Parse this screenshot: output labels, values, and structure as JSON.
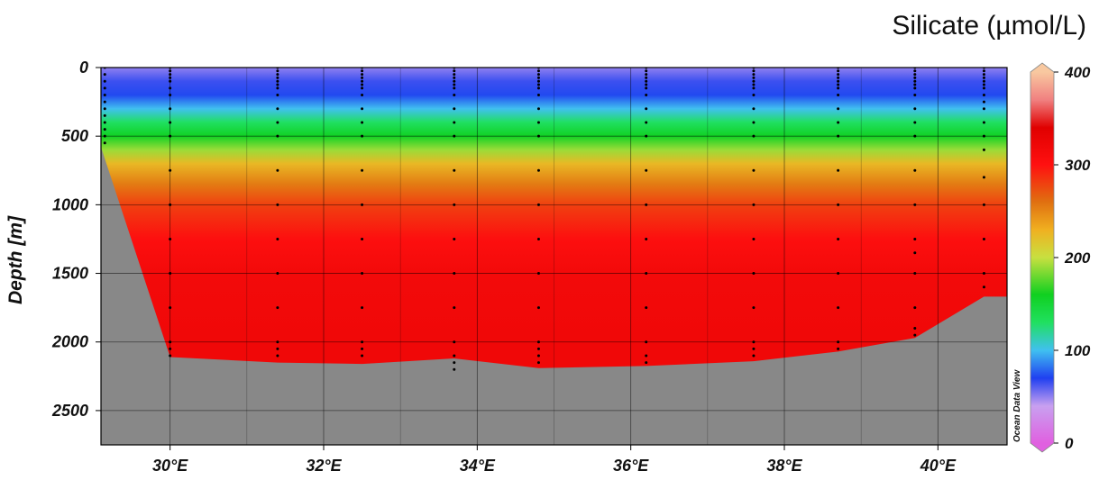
{
  "chart_data": {
    "type": "heatmap",
    "title": "Silicate (µmol/L)",
    "xlabel": "",
    "ylabel": "Depth [m]",
    "xlim": [
      29.1,
      40.9
    ],
    "ylim": [
      2750,
      0
    ],
    "x_ticks": [
      30,
      32,
      34,
      36,
      38,
      40
    ],
    "x_tick_labels": [
      "30°E",
      "32°E",
      "34°E",
      "36°E",
      "38°E",
      "40°E"
    ],
    "y_ticks": [
      0,
      500,
      1000,
      1500,
      2000,
      2500
    ],
    "y_tick_labels": [
      "0",
      "500",
      "1000",
      "1500",
      "2000",
      "2500"
    ],
    "grid": true,
    "colorbar": {
      "min": 0,
      "max": 400,
      "ticks": [
        0,
        100,
        200,
        300,
        400
      ],
      "tick_labels": [
        "0",
        "100",
        "200",
        "300",
        "400"
      ],
      "stops": [
        {
          "value": 0,
          "color": "#e060e0"
        },
        {
          "value": 40,
          "color": "#c8a0f0"
        },
        {
          "value": 70,
          "color": "#2040f0"
        },
        {
          "value": 100,
          "color": "#40c0f0"
        },
        {
          "value": 130,
          "color": "#20e060"
        },
        {
          "value": 160,
          "color": "#10d020"
        },
        {
          "value": 200,
          "color": "#c8e040"
        },
        {
          "value": 230,
          "color": "#f0b020"
        },
        {
          "value": 260,
          "color": "#e07010"
        },
        {
          "value": 300,
          "color": "#ff1010"
        },
        {
          "value": 340,
          "color": "#e00000"
        },
        {
          "value": 370,
          "color": "#f08080"
        },
        {
          "value": 400,
          "color": "#f8c8a0"
        }
      ]
    },
    "concentration_profile": [
      {
        "depth": 0,
        "value": 50
      },
      {
        "depth": 100,
        "value": 65
      },
      {
        "depth": 200,
        "value": 72
      },
      {
        "depth": 300,
        "value": 100
      },
      {
        "depth": 400,
        "value": 130
      },
      {
        "depth": 500,
        "value": 158
      },
      {
        "depth": 600,
        "value": 190
      },
      {
        "depth": 700,
        "value": 225
      },
      {
        "depth": 850,
        "value": 255
      },
      {
        "depth": 1000,
        "value": 280
      },
      {
        "depth": 1250,
        "value": 303
      },
      {
        "depth": 1500,
        "value": 315
      },
      {
        "depth": 2000,
        "value": 320
      }
    ],
    "seafloor": [
      {
        "x": 29.1,
        "depth": 580
      },
      {
        "x": 30.0,
        "depth": 2110
      },
      {
        "x": 31.4,
        "depth": 2150
      },
      {
        "x": 32.5,
        "depth": 2160
      },
      {
        "x": 33.7,
        "depth": 2120
      },
      {
        "x": 34.8,
        "depth": 2190
      },
      {
        "x": 36.2,
        "depth": 2175
      },
      {
        "x": 37.6,
        "depth": 2140
      },
      {
        "x": 38.7,
        "depth": 2070
      },
      {
        "x": 39.7,
        "depth": 1970
      },
      {
        "x": 40.6,
        "depth": 1670
      },
      {
        "x": 40.9,
        "depth": 1670
      }
    ],
    "stations": [
      {
        "x": 29.15,
        "depths": [
          0,
          50,
          100,
          150,
          200,
          250,
          300,
          350,
          400,
          450,
          500,
          550
        ]
      },
      {
        "x": 30.0,
        "depths": [
          0,
          25,
          50,
          75,
          100,
          150,
          200,
          300,
          400,
          500,
          750,
          1000,
          1250,
          1500,
          1750,
          2000,
          2050,
          2100
        ]
      },
      {
        "x": 31.4,
        "depths": [
          0,
          25,
          50,
          75,
          100,
          125,
          150,
          200,
          300,
          400,
          500,
          750,
          1000,
          1250,
          1500,
          1750,
          2000,
          2050,
          2100
        ]
      },
      {
        "x": 32.5,
        "depths": [
          0,
          25,
          50,
          75,
          100,
          125,
          150,
          200,
          300,
          400,
          500,
          750,
          1000,
          1250,
          1500,
          1750,
          2000,
          2050,
          2100
        ]
      },
      {
        "x": 33.7,
        "depths": [
          0,
          25,
          50,
          75,
          100,
          125,
          150,
          200,
          300,
          400,
          500,
          750,
          1000,
          1250,
          1500,
          1750,
          2000,
          2100,
          2150,
          2200
        ]
      },
      {
        "x": 34.8,
        "depths": [
          0,
          25,
          50,
          75,
          100,
          125,
          150,
          200,
          300,
          400,
          500,
          750,
          1000,
          1250,
          1500,
          1750,
          2000,
          2050,
          2100,
          2150
        ]
      },
      {
        "x": 36.2,
        "depths": [
          0,
          25,
          50,
          75,
          100,
          125,
          150,
          200,
          300,
          400,
          500,
          750,
          1000,
          1250,
          1500,
          1750,
          2000,
          2100,
          2150
        ]
      },
      {
        "x": 37.6,
        "depths": [
          0,
          25,
          50,
          75,
          100,
          125,
          150,
          200,
          300,
          400,
          500,
          750,
          1000,
          1250,
          1500,
          1750,
          2000,
          2050,
          2100
        ]
      },
      {
        "x": 38.7,
        "depths": [
          0,
          25,
          50,
          75,
          100,
          125,
          150,
          200,
          300,
          400,
          500,
          750,
          1000,
          1250,
          1500,
          1750,
          2000,
          2050
        ]
      },
      {
        "x": 39.7,
        "depths": [
          0,
          25,
          50,
          75,
          100,
          125,
          150,
          200,
          300,
          400,
          500,
          750,
          1000,
          1250,
          1350,
          1500,
          1750,
          1900,
          1950
        ]
      },
      {
        "x": 40.6,
        "depths": [
          0,
          25,
          50,
          75,
          100,
          125,
          150,
          200,
          250,
          300,
          400,
          500,
          600,
          800,
          1000,
          1250,
          1500,
          1600
        ]
      }
    ],
    "seafloor_color": "#888888",
    "watermark": "Ocean Data View"
  }
}
